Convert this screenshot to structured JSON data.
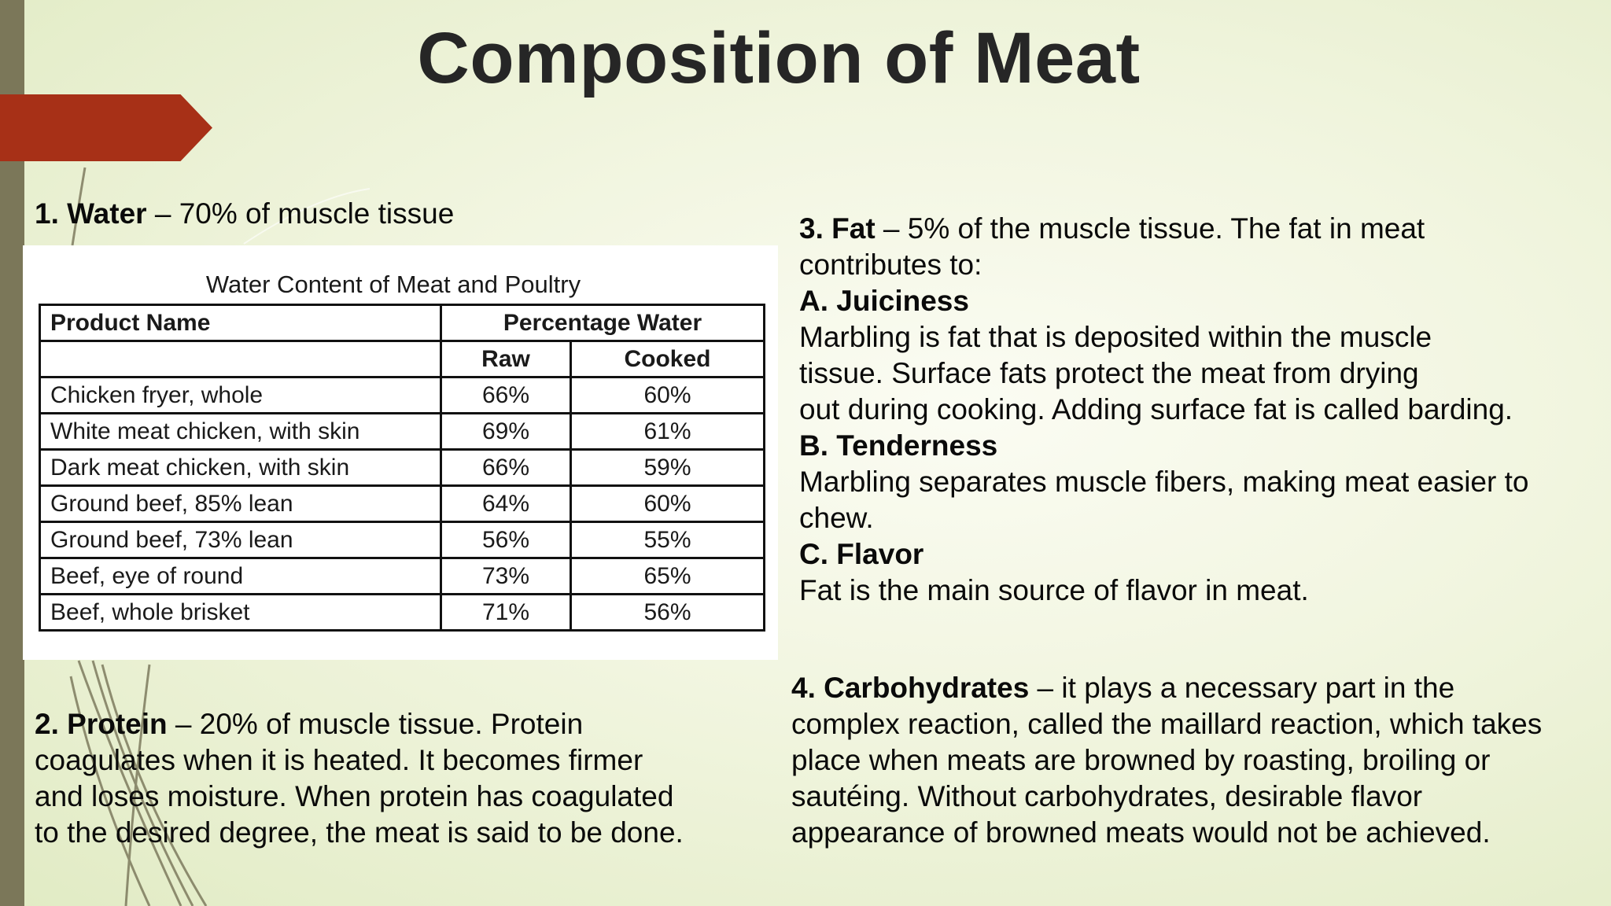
{
  "title": "Composition of Meat",
  "water": {
    "label": "1. Water",
    "text": " – 70% of muscle tissue"
  },
  "table": {
    "caption": "Water Content of Meat and Poultry",
    "headers": {
      "product": "Product Name",
      "percentage": "Percentage Water",
      "raw": "Raw",
      "cooked": "Cooked"
    },
    "rows": [
      {
        "name": "Chicken fryer, whole",
        "raw": "66%",
        "cooked": "60%"
      },
      {
        "name": "White meat chicken, with skin",
        "raw": "69%",
        "cooked": "61%"
      },
      {
        "name": "Dark meat chicken, with skin",
        "raw": "66%",
        "cooked": "59%"
      },
      {
        "name": "Ground beef, 85% lean",
        "raw": "64%",
        "cooked": "60%"
      },
      {
        "name": "Ground beef, 73% lean",
        "raw": "56%",
        "cooked": "55%"
      },
      {
        "name": "Beef, eye of round",
        "raw": "73%",
        "cooked": "65%"
      },
      {
        "name": "Beef, whole brisket",
        "raw": "71%",
        "cooked": "56%"
      }
    ]
  },
  "protein": {
    "label": "2. Protein",
    "lines": [
      " – 20% of muscle tissue. Protein",
      "coagulates when it is heated. It becomes firmer",
      "and loses moisture. When protein has coagulated",
      "to the desired degree, the meat is said to be done."
    ]
  },
  "fat": {
    "label": "3. Fat",
    "intro_lines": [
      " – 5% of the muscle tissue. The fat in meat",
      "contributes to:"
    ],
    "juiciness_heading": "A. Juiciness",
    "juiciness_lines": [
      "Marbling is fat that is deposited within the muscle",
      "tissue. Surface fats protect the meat from drying",
      "out during cooking. Adding surface fat is called barding."
    ],
    "tenderness_heading": "B. Tenderness",
    "tenderness_lines": [
      "Marbling separates muscle fibers, making meat easier to",
      "chew."
    ],
    "flavor_heading": "C. Flavor",
    "flavor_lines": [
      "Fat is the main source of flavor in meat."
    ]
  },
  "carbs": {
    "label": "4. Carbohydrates",
    "lines": [
      " – it plays a necessary part in the",
      "complex reaction, called the maillard reaction, which takes",
      "place when meats are browned by roasting, broiling or",
      "sautéing. Without carbohydrates, desirable flavor",
      "appearance of browned meats would not be achieved."
    ]
  },
  "colors": {
    "side_bar": "#7b7759",
    "arrow": "#a73017",
    "title": "#262626"
  }
}
